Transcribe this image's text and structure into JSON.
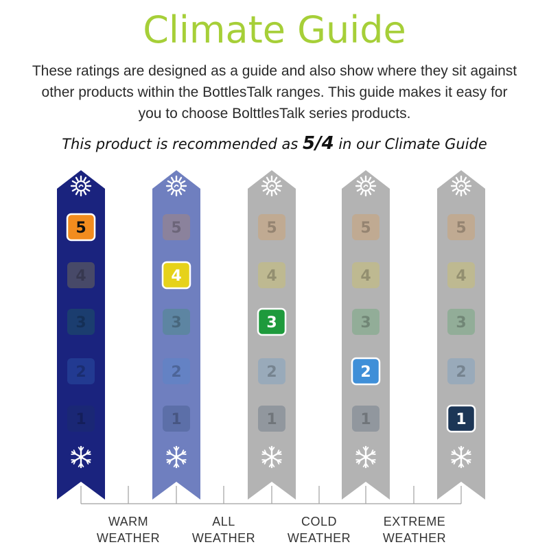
{
  "heading": {
    "title": "Climate Guide",
    "title_color": "#a6cf38"
  },
  "intro_lines": [
    "These ratings are designed as a guide and also show where they sit against",
    "other products within the BottlesTalk ranges. This guide makes it easy for",
    "you to choose BolttlesTalk series products."
  ],
  "recommendation": {
    "prefix": "This product is recommended as ",
    "rating": "5/4",
    "suffix": " in our Climate Guide"
  },
  "banners": [
    {
      "highlighted": "5",
      "fill": "#1a237e",
      "opacity": 1.0
    },
    {
      "highlighted": "4",
      "fill": "#6f7fbf",
      "opacity": 1.0
    },
    {
      "highlighted": "3",
      "fill": "#b3b3b3",
      "opacity": 1.0
    },
    {
      "highlighted": "2",
      "fill": "#b3b3b3",
      "opacity": 1.0
    },
    {
      "highlighted": "1",
      "fill": "#b3b3b3",
      "opacity": 1.0
    }
  ],
  "levels": [
    {
      "value": "5",
      "color": "#f28c1e"
    },
    {
      "value": "4",
      "color": "#e6d21a"
    },
    {
      "value": "3",
      "color": "#1e9a3c"
    },
    {
      "value": "2",
      "color": "#3f8fd8"
    },
    {
      "value": "1",
      "color": "#1c3656"
    }
  ],
  "icons": {
    "top": "sun-icon",
    "bottom": "snowflake-icon"
  },
  "weather_labels": [
    {
      "line1": "WARM",
      "line2": "WEATHER"
    },
    {
      "line1": "ALL",
      "line2": "WEATHER"
    },
    {
      "line1": "COLD",
      "line2": "WEATHER"
    },
    {
      "line1": "EXTREME",
      "line2": "WEATHER"
    }
  ]
}
